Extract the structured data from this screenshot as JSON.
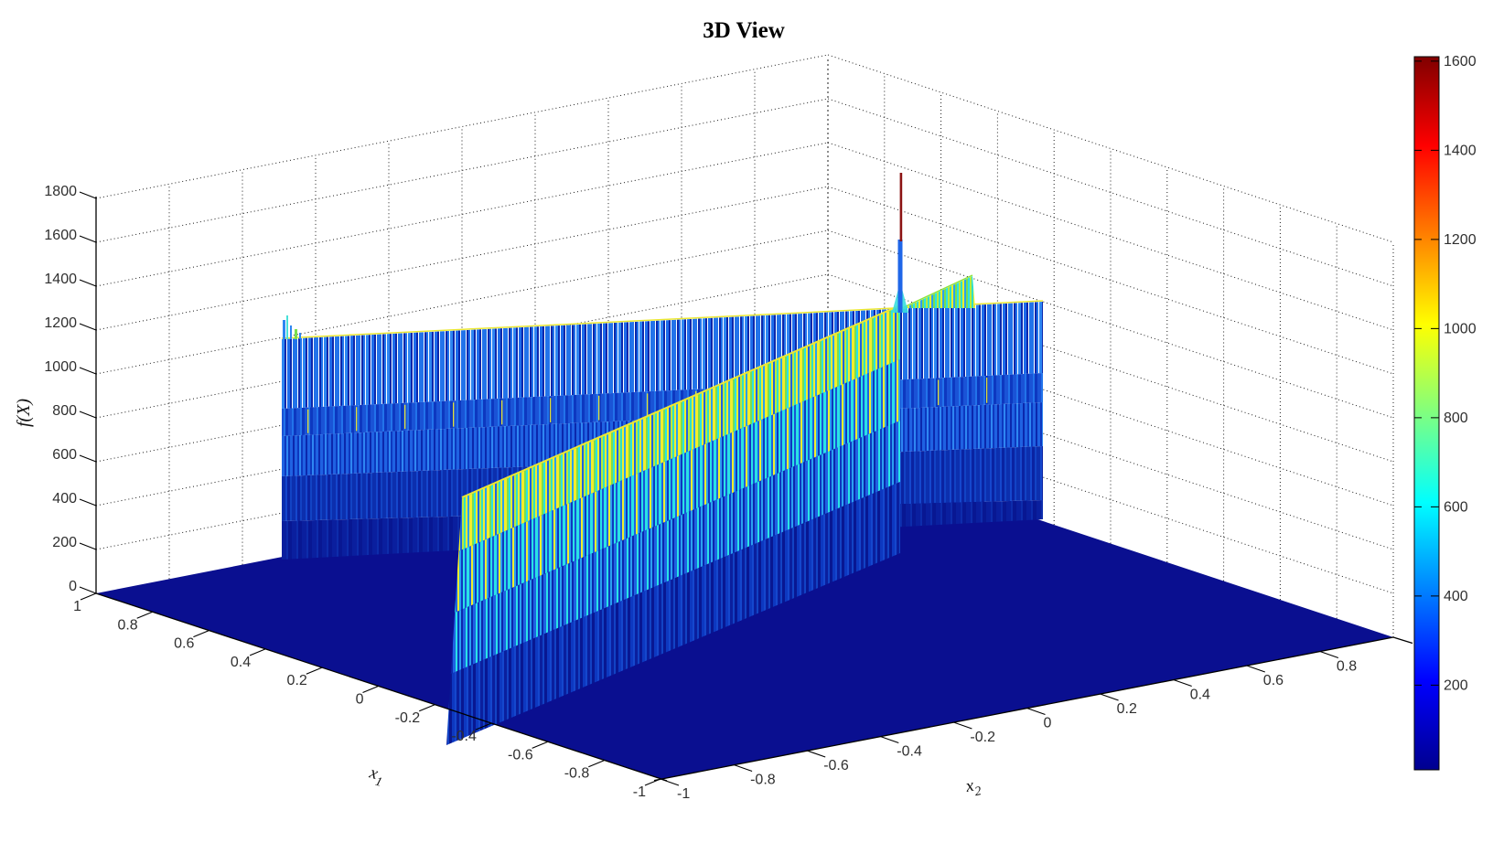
{
  "chart_data": {
    "type": "surface3d",
    "title": "3D View",
    "view": "MATLAB-style 3D perspective, azimuth ~ -37.5 deg, elevation ~ 30 deg",
    "grid": "dotted",
    "axes": {
      "x1": {
        "label": "x",
        "label_subscript": "1",
        "range": [
          -1,
          1
        ],
        "ticks": [
          "1",
          "0.8",
          "0.6",
          "0.4",
          "0.2",
          "0",
          "-0.2",
          "-0.4",
          "-0.6",
          "-0.8",
          "-1"
        ]
      },
      "x2": {
        "label": "x",
        "label_subscript": "2",
        "range": [
          -1,
          1
        ],
        "ticks": [
          "-1",
          "-0.8",
          "-0.6",
          "-0.4",
          "-0.2",
          "0",
          "0.2",
          "0.4",
          "0.6",
          "0.8"
        ]
      },
      "z": {
        "label": "f(X)",
        "range": [
          0,
          1800
        ],
        "ticks": [
          "0",
          "200",
          "400",
          "600",
          "800",
          "1000",
          "1200",
          "1400",
          "1600",
          "1800"
        ]
      }
    },
    "colorbar": {
      "orientation": "vertical",
      "ticks": [
        "200",
        "400",
        "600",
        "800",
        "1000",
        "1200",
        "1400",
        "1600"
      ],
      "value_min": 10,
      "value_max": 1610,
      "colormap": "jet",
      "stops": [
        [
          0,
          "#00008f"
        ],
        [
          0.125,
          "#0000ff"
        ],
        [
          0.375,
          "#00ffff"
        ],
        [
          0.625,
          "#ffff00"
        ],
        [
          0.875,
          "#ff0000"
        ],
        [
          1,
          "#800000"
        ]
      ]
    },
    "surface": {
      "floor_value": 0,
      "features": [
        {
          "name": "flat floor",
          "value": "~0",
          "extent": "most of the domain [-1,1] x [-1,1], dark navy (lowest color)"
        },
        {
          "name": "rear ridge wall",
          "top_value": "~1150",
          "extent": "tall striped wall running along the back of the domain, full width"
        },
        {
          "name": "diagonal ridge wall",
          "top_value": "~550 at front rising to ~1150 at back",
          "extent": "starts near x1 = -0.4 on the front edge and runs back to meet the rear wall"
        },
        {
          "name": "peak spike",
          "value": "~1610",
          "extent": "single narrow dark-red spike where the two ridges meet"
        }
      ]
    }
  },
  "colors": {
    "grid_color": "#1c1c1c",
    "tick_color": "#2f2f2f",
    "axis_color": "#000000",
    "floor": "#0a0f90",
    "edge_yellow": "#ece832",
    "wedge_edge": "#8fe23c",
    "spike_red": "#8c1414",
    "spike_blue": "#1f66e8",
    "spike_cyan": "#38dede",
    "back_wall_bands": [
      [
        [
          "#2273ea",
          3
        ],
        [
          "#ffffff",
          1
        ],
        [
          "#0b28ad",
          2
        ],
        [
          "#2273ea",
          2
        ],
        [
          "#ffffff",
          1
        ],
        [
          "#2e86f2",
          3
        ],
        [
          "#0b28ad",
          2
        ],
        [
          "#ffffff",
          1
        ],
        [
          "#1e6ceb",
          3
        ],
        [
          "#0b28ad",
          2
        ],
        [
          "#ffffff",
          1
        ],
        [
          "#2273ea",
          2
        ]
      ],
      [
        [
          "#1a53d6",
          4
        ],
        [
          "#2273ea",
          2
        ],
        [
          "#0d38c0",
          3
        ],
        [
          "#1a53d6",
          4
        ],
        [
          "#2273ea",
          2
        ],
        [
          "#0d38c0",
          3
        ]
      ],
      [
        [
          "#1f62e2",
          3
        ],
        [
          "#0d38c0",
          2
        ],
        [
          "#2e86f2",
          2
        ],
        [
          "#0d38c0",
          2
        ],
        [
          "#1f62e2",
          3
        ],
        [
          "#0b28ad",
          2
        ]
      ],
      [
        [
          "#0c2fae",
          4
        ],
        [
          "#1547cd",
          2
        ],
        [
          "#0a23a2",
          3
        ],
        [
          "#1243c4",
          2
        ]
      ],
      [
        [
          "#0a1f9e",
          5
        ],
        [
          "#0d2cab",
          2
        ],
        [
          "#081792",
          4
        ]
      ]
    ],
    "diag_wall_bands": [
      [
        [
          "#f2ee2c",
          3
        ],
        [
          "#7ade4e",
          2
        ],
        [
          "#29e2e6",
          2
        ],
        [
          "#f2ee2c",
          2
        ],
        [
          "#1f62e2",
          2
        ],
        [
          "#b9e93c",
          2
        ],
        [
          "#2fe0c8",
          2
        ],
        [
          "#f2ee2c",
          2
        ],
        [
          "#2b9ff0",
          2
        ]
      ],
      [
        [
          "#29e2e6",
          3
        ],
        [
          "#1f62e2",
          2
        ],
        [
          "#f2ee2c",
          2
        ],
        [
          "#2b9ff0",
          2
        ],
        [
          "#0d38c0",
          2
        ],
        [
          "#29e2e6",
          2
        ],
        [
          "#1a53d6",
          2
        ]
      ],
      [
        [
          "#1f62e2",
          3
        ],
        [
          "#29e2e6",
          2
        ],
        [
          "#0d38c0",
          2
        ],
        [
          "#2b9ff0",
          2
        ],
        [
          "#0b28ad",
          2
        ]
      ],
      [
        [
          "#0d38c0",
          3
        ],
        [
          "#1547cd",
          2
        ],
        [
          "#0a1f9e",
          3
        ],
        [
          "#1243c4",
          2
        ],
        [
          "#081792",
          3
        ]
      ]
    ],
    "wedge_stripes": [
      [
        "#7ade4e",
        2
      ],
      [
        "#29e2e6",
        2
      ],
      [
        "#b9e93c",
        2
      ],
      [
        "#2fe0c8",
        2
      ],
      [
        "#f2ee2c",
        2
      ],
      [
        "#2b9ff0",
        2
      ]
    ],
    "tuft_bars": [
      [
        309,
        350,
        3,
        21,
        "#2e86f2"
      ],
      [
        313,
        345,
        2,
        26,
        "#49e0d8"
      ],
      [
        317,
        356,
        2,
        15,
        "#2e86f2"
      ],
      [
        322,
        360,
        3,
        11,
        "#7ade4e"
      ],
      [
        327,
        364,
        2,
        7,
        "#2e86f2"
      ]
    ]
  }
}
